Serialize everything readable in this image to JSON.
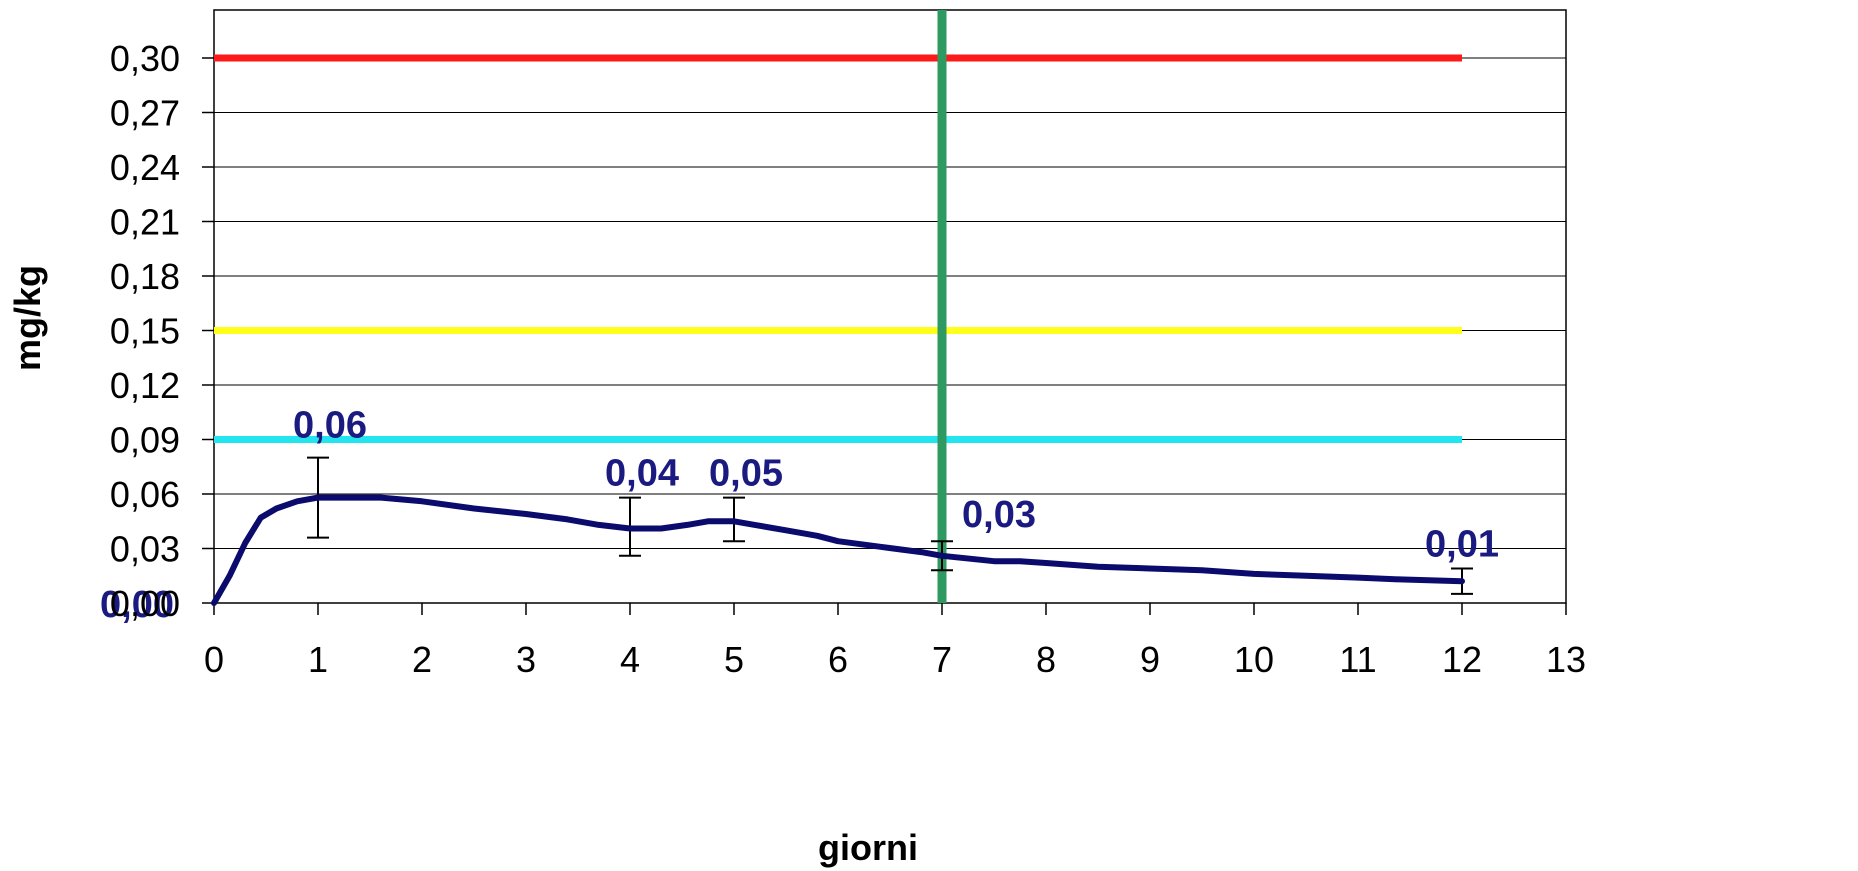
{
  "chart_data": {
    "type": "line",
    "title": "",
    "xlabel": "giorni",
    "ylabel": "mg/kg",
    "xlim": [
      0,
      13
    ],
    "ylim": [
      0,
      0.3
    ],
    "grid": "horizontal",
    "x_ticks": [
      "0",
      "1",
      "2",
      "3",
      "4",
      "5",
      "6",
      "7",
      "8",
      "9",
      "10",
      "11",
      "12",
      "13"
    ],
    "y_ticks": [
      "0,00",
      "0,03",
      "0,06",
      "0,09",
      "0,12",
      "0,15",
      "0,18",
      "0,21",
      "0,24",
      "0,27",
      "0,30"
    ],
    "series": [
      {
        "color": "#0b0b6e",
        "x": [
          0,
          0.15,
          0.3,
          0.45,
          0.6,
          0.8,
          1.0,
          1.2,
          1.6,
          2.0,
          2.5,
          3.0,
          3.4,
          3.7,
          4.0,
          4.3,
          4.55,
          4.75,
          5.0,
          5.2,
          5.5,
          5.8,
          6.0,
          6.4,
          6.8,
          7.0,
          7.5,
          7.75,
          8.0,
          8.5,
          9.0,
          9.5,
          10.0,
          10.5,
          11.0,
          11.4,
          12.0
        ],
        "y": [
          0.0,
          0.015,
          0.033,
          0.047,
          0.052,
          0.056,
          0.058,
          0.058,
          0.058,
          0.056,
          0.052,
          0.049,
          0.046,
          0.043,
          0.041,
          0.041,
          0.043,
          0.045,
          0.045,
          0.043,
          0.04,
          0.037,
          0.034,
          0.031,
          0.028,
          0.026,
          0.023,
          0.023,
          0.022,
          0.02,
          0.019,
          0.018,
          0.016,
          0.015,
          0.014,
          0.013,
          0.012
        ]
      }
    ],
    "points": [
      {
        "x": 0,
        "y": 0.0,
        "label": "0,00"
      },
      {
        "x": 1,
        "y": 0.058,
        "label": "0,06",
        "err": [
          0.036,
          0.08
        ]
      },
      {
        "x": 4,
        "y": 0.041,
        "label": "0,04",
        "err": [
          0.026,
          0.058
        ]
      },
      {
        "x": 5,
        "y": 0.045,
        "label": "0,05",
        "err": [
          0.034,
          0.058
        ]
      },
      {
        "x": 7,
        "y": 0.026,
        "label": "0,03",
        "err": [
          0.018,
          0.034
        ]
      },
      {
        "x": 12,
        "y": 0.012,
        "label": "0,01",
        "err": [
          0.005,
          0.019
        ]
      }
    ],
    "reference_lines": [
      {
        "orientation": "horizontal",
        "value": 0.3,
        "x_end": 12,
        "color": "#ff1a1a"
      },
      {
        "orientation": "horizontal",
        "value": 0.15,
        "x_end": 12,
        "color": "#ffff1a"
      },
      {
        "orientation": "horizontal",
        "value": 0.09,
        "x_end": 12,
        "color": "#22e5f0"
      },
      {
        "orientation": "vertical",
        "value": 7,
        "color": "#2e9a62"
      }
    ]
  }
}
